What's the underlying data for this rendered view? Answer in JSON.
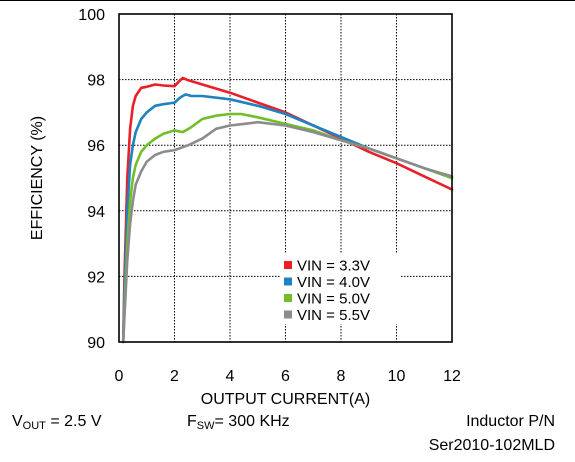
{
  "chart_data": {
    "type": "line",
    "title": "",
    "xlabel": "OUTPUT CURRENT(A)",
    "ylabel": "EFFICIENCY (%)",
    "xlim": [
      0,
      12
    ],
    "ylim": [
      90,
      100
    ],
    "xticks": [
      "0",
      "2",
      "4",
      "6",
      "8",
      "10",
      "12"
    ],
    "yticks": [
      "90",
      "92",
      "94",
      "96",
      "98",
      "100"
    ],
    "grid": true,
    "legend_position": "bottom-right",
    "series": [
      {
        "name": "VIN = 3.3V",
        "color": "#e8202a",
        "x": [
          0.15,
          0.2,
          0.3,
          0.4,
          0.5,
          0.6,
          0.8,
          1.0,
          1.3,
          1.6,
          2.0,
          2.2,
          2.3,
          2.5,
          3.0,
          4.0,
          5.0,
          6.0,
          7.0,
          8.0,
          9.0,
          10.0,
          11.0,
          12.0
        ],
        "y": [
          90.0,
          92.0,
          95.0,
          96.5,
          97.2,
          97.5,
          97.75,
          97.78,
          97.85,
          97.82,
          97.8,
          97.98,
          98.05,
          97.98,
          97.85,
          97.6,
          97.3,
          97.0,
          96.6,
          96.2,
          95.8,
          95.45,
          95.05,
          94.65
        ]
      },
      {
        "name": "VIN = 4.0V",
        "color": "#1f82c0",
        "x": [
          0.15,
          0.2,
          0.3,
          0.4,
          0.5,
          0.6,
          0.8,
          1.0,
          1.3,
          1.6,
          2.0,
          2.2,
          2.4,
          2.6,
          3.0,
          4.0,
          5.0,
          6.0,
          7.0,
          8.0,
          9.0,
          10.0,
          11.0,
          12.0
        ],
        "y": [
          90.0,
          91.5,
          94.0,
          95.4,
          96.0,
          96.4,
          96.8,
          97.0,
          97.2,
          97.25,
          97.3,
          97.45,
          97.55,
          97.5,
          97.5,
          97.4,
          97.2,
          96.95,
          96.6,
          96.25,
          95.9,
          95.6,
          95.3,
          95.0
        ]
      },
      {
        "name": "VIN = 5.0V",
        "color": "#72be28",
        "x": [
          0.15,
          0.2,
          0.3,
          0.4,
          0.5,
          0.6,
          0.8,
          1.0,
          1.3,
          1.6,
          2.0,
          2.3,
          2.6,
          3.0,
          3.5,
          4.0,
          4.4,
          5.0,
          6.0,
          7.0,
          8.0,
          9.0,
          10.0,
          11.0,
          12.0
        ],
        "y": [
          90.0,
          91.0,
          93.0,
          94.3,
          95.0,
          95.4,
          95.8,
          96.0,
          96.2,
          96.35,
          96.45,
          96.4,
          96.55,
          96.8,
          96.9,
          96.95,
          96.95,
          96.85,
          96.65,
          96.45,
          96.15,
          95.9,
          95.6,
          95.3,
          95.0
        ]
      },
      {
        "name": "VIN = 5.5V",
        "color": "#8c8c8c",
        "x": [
          0.15,
          0.2,
          0.3,
          0.4,
          0.5,
          0.6,
          0.8,
          1.0,
          1.3,
          1.6,
          2.0,
          2.5,
          3.0,
          3.5,
          4.0,
          4.5,
          5.0,
          6.0,
          7.0,
          8.0,
          9.0,
          10.0,
          11.0,
          12.0
        ],
        "y": [
          90.0,
          90.8,
          92.5,
          93.6,
          94.3,
          94.8,
          95.2,
          95.5,
          95.7,
          95.8,
          95.85,
          96.0,
          96.2,
          96.5,
          96.6,
          96.65,
          96.7,
          96.6,
          96.4,
          96.15,
          95.9,
          95.6,
          95.3,
          95.05
        ]
      }
    ]
  },
  "captions": {
    "vout_main": "V",
    "vout_sub": "OUT",
    "vout_value": " = 2.5 V",
    "fsw_main": "F",
    "fsw_sub": "SW",
    "fsw_value": "= 300 KHz",
    "inductor_line1": "Inductor P/N",
    "inductor_line2": "Ser2010-102MLD"
  }
}
